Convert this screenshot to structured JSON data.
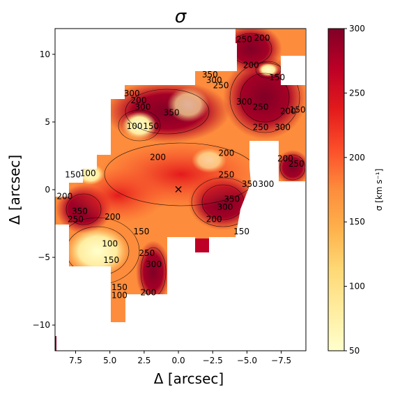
{
  "chart_data": {
    "type": "heatmap",
    "title": "σ",
    "xlabel": "Δ [arcsec]",
    "ylabel": "Δ [arcsec]",
    "xlim": [
      9.0,
      -9.3
    ],
    "ylim": [
      -11.9,
      11.9
    ],
    "x_ticks": [
      7.5,
      5.0,
      2.5,
      0.0,
      -2.5,
      -5.0,
      -7.5
    ],
    "x_tick_labels": [
      "7.5",
      "5.0",
      "2.5",
      "0.0",
      "−2.5",
      "−5.0",
      "−7.5"
    ],
    "y_ticks": [
      10,
      5,
      0,
      -5,
      -10
    ],
    "y_tick_labels": [
      "10",
      "5",
      "0",
      "−5",
      "−10"
    ],
    "colorbar": {
      "label": "σ [km s⁻¹]",
      "min": 50,
      "max": 300,
      "ticks": [
        50,
        100,
        150,
        200,
        250,
        300
      ],
      "colormap": [
        "#ffffcc",
        "#ffeda0",
        "#fed976",
        "#feb24c",
        "#fd8d3c",
        "#fc4e2a",
        "#e31a1c",
        "#bd0026",
        "#800026"
      ]
    },
    "center_marker": {
      "symbol": "×",
      "x": 0.0,
      "y": 0.0
    },
    "contour_levels": [
      100,
      150,
      200,
      250,
      300,
      350
    ],
    "contour_labels": [
      {
        "text": "250",
        "x": -4.8,
        "y": 11.1
      },
      {
        "text": "200",
        "x": -6.1,
        "y": 11.2
      },
      {
        "text": "350",
        "x": -2.3,
        "y": 8.5
      },
      {
        "text": "300",
        "x": -2.6,
        "y": 8.1
      },
      {
        "text": "250",
        "x": -3.1,
        "y": 7.7
      },
      {
        "text": "200",
        "x": -5.3,
        "y": 9.2
      },
      {
        "text": "150",
        "x": -7.2,
        "y": 8.3
      },
      {
        "text": "300",
        "x": 3.4,
        "y": 7.1
      },
      {
        "text": "200",
        "x": 2.9,
        "y": 6.6
      },
      {
        "text": "300",
        "x": 2.6,
        "y": 6.1
      },
      {
        "text": "350",
        "x": 0.5,
        "y": 5.7
      },
      {
        "text": "150",
        "x": 2.0,
        "y": 4.7
      },
      {
        "text": "100",
        "x": 3.2,
        "y": 4.7
      },
      {
        "text": "300",
        "x": -4.8,
        "y": 6.5
      },
      {
        "text": "250",
        "x": -6.0,
        "y": 6.1
      },
      {
        "text": "200",
        "x": -8.0,
        "y": 5.8
      },
      {
        "text": "150",
        "x": -8.7,
        "y": 5.9
      },
      {
        "text": "250",
        "x": -6.0,
        "y": 4.6
      },
      {
        "text": "300",
        "x": -7.6,
        "y": 4.6
      },
      {
        "text": "200",
        "x": 1.5,
        "y": 2.4
      },
      {
        "text": "200",
        "x": -3.5,
        "y": 2.7
      },
      {
        "text": "200",
        "x": -7.8,
        "y": 2.3
      },
      {
        "text": "250",
        "x": -8.6,
        "y": 1.9
      },
      {
        "text": "250",
        "x": -3.5,
        "y": 1.1
      },
      {
        "text": "150",
        "x": 7.7,
        "y": 1.1
      },
      {
        "text": "100",
        "x": 6.6,
        "y": 1.2
      },
      {
        "text": "350",
        "x": -5.2,
        "y": 0.4
      },
      {
        "text": "300",
        "x": -6.4,
        "y": 0.4
      },
      {
        "text": "200",
        "x": 8.3,
        "y": -0.5
      },
      {
        "text": "350",
        "x": -3.9,
        "y": -0.7
      },
      {
        "text": "300",
        "x": -3.4,
        "y": -1.3
      },
      {
        "text": "350",
        "x": 7.2,
        "y": -1.6
      },
      {
        "text": "250",
        "x": 7.5,
        "y": -2.2
      },
      {
        "text": "200",
        "x": 4.8,
        "y": -2.0
      },
      {
        "text": "200",
        "x": -2.6,
        "y": -2.2
      },
      {
        "text": "150",
        "x": -4.6,
        "y": -3.1
      },
      {
        "text": "150",
        "x": 2.7,
        "y": -3.1
      },
      {
        "text": "100",
        "x": 5.0,
        "y": -4.0
      },
      {
        "text": "150",
        "x": 4.9,
        "y": -5.2
      },
      {
        "text": "250",
        "x": 2.3,
        "y": -4.7
      },
      {
        "text": "300",
        "x": 1.8,
        "y": -5.5
      },
      {
        "text": "150",
        "x": 4.3,
        "y": -7.2
      },
      {
        "text": "100",
        "x": 4.3,
        "y": -7.8
      },
      {
        "text": "200",
        "x": 2.2,
        "y": -7.6
      }
    ]
  }
}
